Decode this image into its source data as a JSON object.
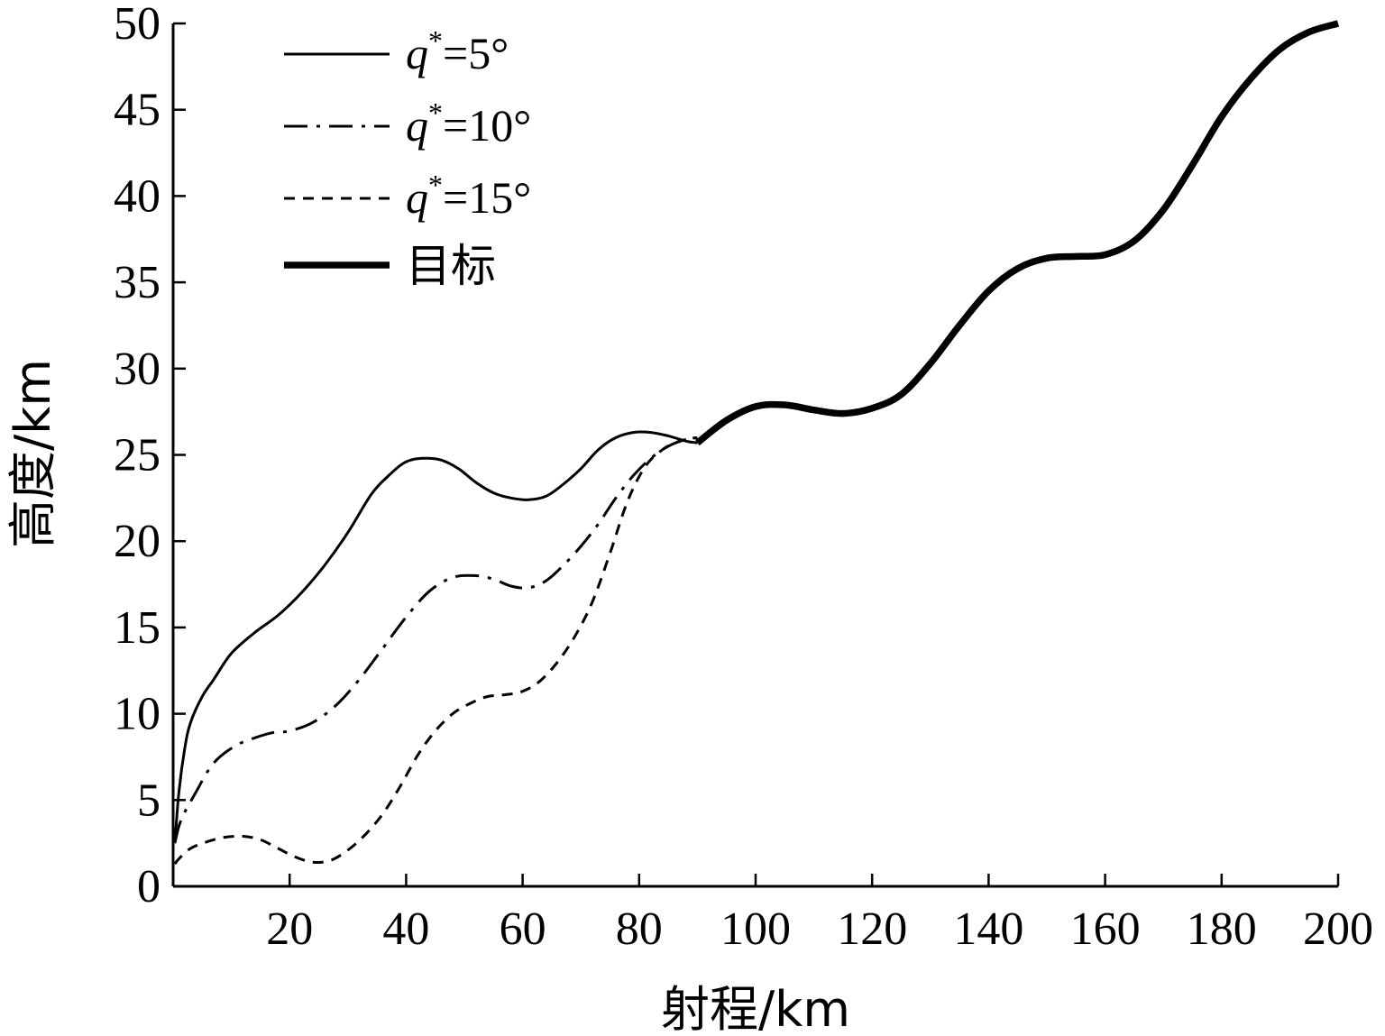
{
  "chart_data": {
    "type": "line",
    "xlabel": "射程/km",
    "ylabel": "高度/km",
    "xlim": [
      0,
      200
    ],
    "ylim": [
      0,
      50
    ],
    "xticks": [
      20,
      40,
      60,
      80,
      100,
      120,
      140,
      160,
      180,
      200
    ],
    "yticks": [
      0,
      5,
      10,
      15,
      20,
      25,
      30,
      35,
      40,
      45,
      50
    ],
    "grid": false,
    "legend_position": "top-left",
    "legend": [
      {
        "var": "q",
        "sup": "*",
        "rest": "=5°",
        "style": "solid"
      },
      {
        "var": "q",
        "sup": "*",
        "rest": "=10°",
        "style": "dashdot"
      },
      {
        "var": "q",
        "sup": "*",
        "rest": "=15°",
        "style": "dashed"
      },
      {
        "label": "目标",
        "style": "thick"
      }
    ],
    "series": [
      {
        "style": "solid",
        "x": [
          0.3,
          1,
          2,
          3,
          5,
          7,
          10,
          14,
          18,
          22,
          26,
          30,
          34,
          37,
          40,
          43,
          46,
          49,
          52,
          55,
          58,
          61,
          64,
          67,
          70,
          73,
          76,
          79,
          82,
          85,
          88,
          90
        ],
        "y": [
          2.5,
          5.5,
          8,
          9.5,
          11,
          12,
          13.5,
          14.7,
          15.7,
          17,
          18.6,
          20.5,
          22.7,
          23.8,
          24.6,
          24.8,
          24.7,
          24.2,
          23.4,
          22.8,
          22.5,
          22.4,
          22.6,
          23.3,
          24.2,
          25.3,
          26,
          26.3,
          26.3,
          26.1,
          25.8,
          25.7
        ]
      },
      {
        "style": "dashdot",
        "x": [
          0.3,
          1,
          2,
          4,
          6,
          8,
          11,
          14,
          17,
          20,
          24,
          28,
          32,
          36,
          40,
          44,
          48,
          52,
          55,
          58,
          61,
          64,
          67,
          70,
          73,
          76,
          79,
          82,
          85,
          88,
          90
        ],
        "y": [
          2.5,
          3.5,
          4.3,
          5.5,
          6.7,
          7.5,
          8.2,
          8.6,
          8.9,
          9,
          9.5,
          10.5,
          12,
          13.8,
          15.6,
          17.1,
          17.9,
          18,
          17.8,
          17.4,
          17.3,
          17.7,
          18.6,
          19.7,
          21,
          22.5,
          23.8,
          24.8,
          25.5,
          25.9,
          26
        ]
      },
      {
        "style": "dashed",
        "x": [
          0.3,
          1,
          3,
          6,
          9,
          12,
          15,
          18,
          21,
          24,
          27,
          30,
          33,
          36,
          39,
          42,
          45,
          48,
          51,
          54,
          57,
          60,
          63,
          66,
          69,
          72,
          75,
          78,
          81,
          84,
          87,
          90
        ],
        "y": [
          1.3,
          1.6,
          2.2,
          2.6,
          2.85,
          2.9,
          2.7,
          2.2,
          1.7,
          1.4,
          1.5,
          2.1,
          3,
          4.2,
          5.8,
          7.6,
          9,
          10,
          10.6,
          11,
          11.1,
          11.3,
          11.9,
          13,
          14.5,
          16.5,
          19.3,
          22.3,
          24.3,
          25.3,
          25.8,
          26
        ]
      },
      {
        "style": "thick",
        "x": [
          90,
          95,
          100,
          105,
          110,
          115,
          120,
          125,
          130,
          135,
          140,
          145,
          150,
          155,
          160,
          165,
          170,
          175,
          180,
          185,
          190,
          195,
          200
        ],
        "y": [
          25.7,
          27,
          27.8,
          27.9,
          27.6,
          27.4,
          27.7,
          28.5,
          30.3,
          32.5,
          34.5,
          35.8,
          36.4,
          36.5,
          36.6,
          37.4,
          39.2,
          41.8,
          44.6,
          46.8,
          48.5,
          49.5,
          50
        ]
      }
    ]
  }
}
